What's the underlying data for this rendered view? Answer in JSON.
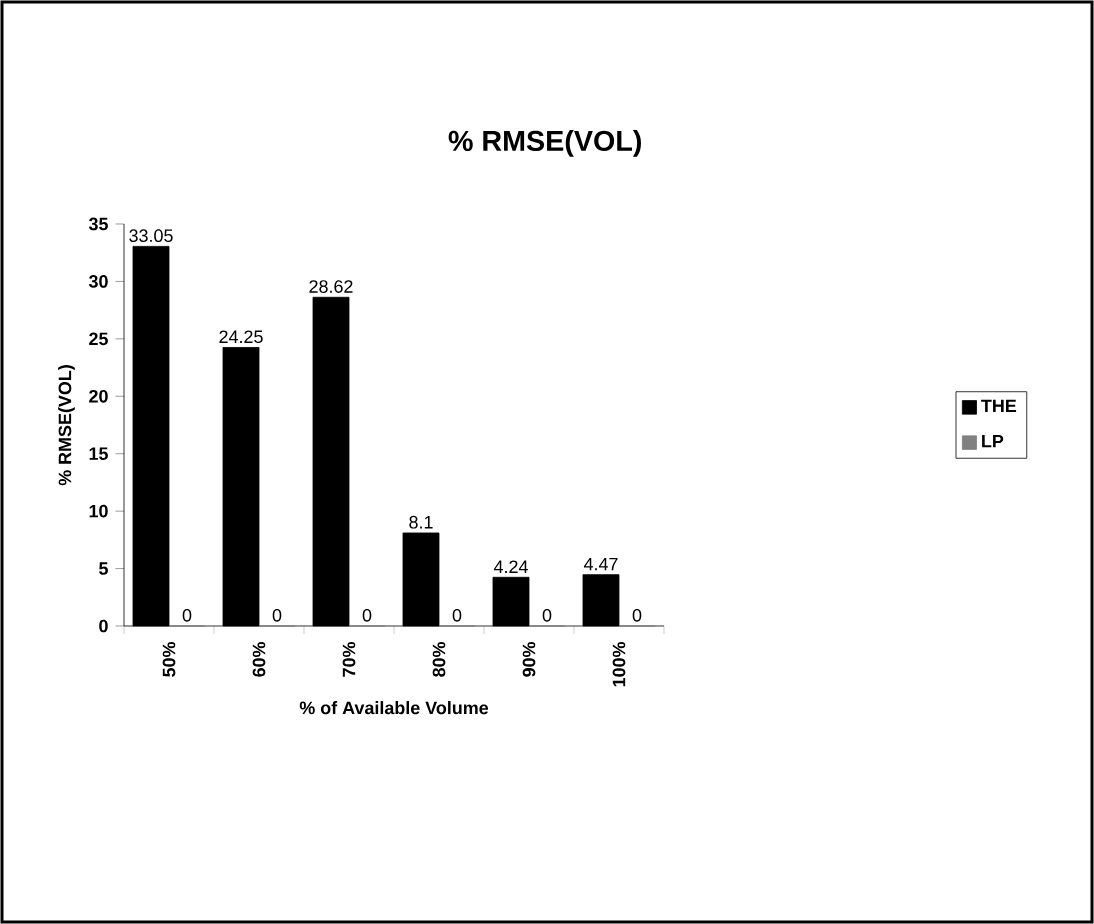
{
  "chart_data": {
    "type": "bar",
    "title": "% RMSE(VOL)",
    "xlabel": "% of Available Volume",
    "ylabel": "% RMSE(VOL)",
    "categories": [
      "50%",
      "60%",
      "70%",
      "80%",
      "90%",
      "100%"
    ],
    "series": [
      {
        "name": "THE",
        "color": "#000000",
        "values": [
          33.05,
          24.25,
          28.62,
          8.1,
          4.24,
          4.47
        ]
      },
      {
        "name": "LP",
        "color": "#808080",
        "values": [
          0,
          0,
          0,
          0,
          0,
          0
        ]
      }
    ],
    "ylim": [
      0,
      35
    ],
    "yticks": [
      0,
      5,
      10,
      15,
      20,
      25,
      30,
      35
    ],
    "data_labels": true,
    "legend": "right",
    "grid": false
  }
}
